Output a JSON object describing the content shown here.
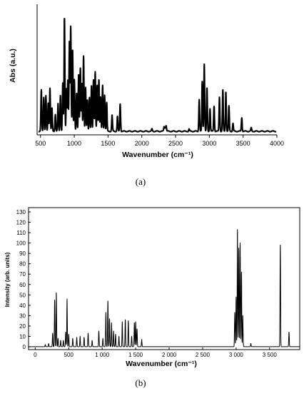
{
  "chart_data": [
    {
      "type": "line",
      "panel_label": "(a)",
      "xlabel": "Wavenumber (cm⁻¹)",
      "ylabel": "Abs (a.u.)",
      "xlim": [
        450,
        4000
      ],
      "x_ticks": [
        "500",
        "1000",
        "1500",
        "2000",
        "2500",
        "3000",
        "3500",
        "4000"
      ],
      "y_ticks": [],
      "grid": false,
      "series": [
        {
          "color": "#000000",
          "peaks": [
            [
              512,
              0.36
            ],
            [
              548,
              0.3
            ],
            [
              580,
              0.31
            ],
            [
              615,
              0.25
            ],
            [
              640,
              0.38
            ],
            [
              670,
              0.2
            ],
            [
              720,
              0.15
            ],
            [
              760,
              0.24
            ],
            [
              795,
              0.32
            ],
            [
              830,
              0.42
            ],
            [
              855,
              1.0
            ],
            [
              885,
              0.38
            ],
            [
              905,
              0.45
            ],
            [
              928,
              0.78
            ],
            [
              948,
              0.92
            ],
            [
              975,
              0.72
            ],
            [
              1002,
              0.45
            ],
            [
              1035,
              0.34
            ],
            [
              1065,
              0.5
            ],
            [
              1090,
              0.55
            ],
            [
              1112,
              0.42
            ],
            [
              1138,
              0.66
            ],
            [
              1168,
              0.38
            ],
            [
              1195,
              0.28
            ],
            [
              1225,
              0.3
            ],
            [
              1255,
              0.4
            ],
            [
              1285,
              0.46
            ],
            [
              1310,
              0.52
            ],
            [
              1340,
              0.4
            ],
            [
              1365,
              0.46
            ],
            [
              1390,
              0.3
            ],
            [
              1420,
              0.4
            ],
            [
              1450,
              0.32
            ],
            [
              1480,
              0.25
            ],
            [
              1560,
              0.14
            ],
            [
              1640,
              0.13
            ],
            [
              1680,
              0.24
            ],
            [
              2150,
              0.02
            ],
            [
              2330,
              0.04
            ],
            [
              2345,
              0.03
            ],
            [
              2360,
              0.05
            ],
            [
              2700,
              0.02
            ],
            [
              2850,
              0.28
            ],
            [
              2895,
              0.44
            ],
            [
              2925,
              0.6
            ],
            [
              2965,
              0.38
            ],
            [
              3010,
              0.2
            ],
            [
              3070,
              0.22
            ],
            [
              3150,
              0.3
            ],
            [
              3200,
              0.36
            ],
            [
              3245,
              0.35
            ],
            [
              3290,
              0.22
            ],
            [
              3350,
              0.07
            ],
            [
              3480,
              0.12
            ],
            [
              3620,
              0.03
            ]
          ]
        }
      ]
    },
    {
      "type": "line",
      "panel_label": "(b)",
      "xlabel": "Wavenumber (cm⁻¹)",
      "ylabel": "Intensity (arb. units)",
      "xlim": [
        -100,
        3950
      ],
      "ylim": [
        0,
        135
      ],
      "x_ticks": [
        "0",
        "500",
        "1 000",
        "1 500",
        "2 000",
        "2 500",
        "3 000",
        "3 500"
      ],
      "y_ticks": [
        "0",
        "10",
        "20",
        "30",
        "40",
        "50",
        "60",
        "70",
        "80",
        "90",
        "100",
        "110",
        "120",
        "130"
      ],
      "grid": false,
      "series": [
        {
          "color": "#000000",
          "peaks": [
            [
              150,
              2
            ],
            [
              200,
              3
            ],
            [
              260,
              13
            ],
            [
              290,
              45
            ],
            [
              315,
              52
            ],
            [
              340,
              8
            ],
            [
              380,
              6
            ],
            [
              420,
              6
            ],
            [
              455,
              14
            ],
            [
              475,
              46
            ],
            [
              500,
              12
            ],
            [
              560,
              8
            ],
            [
              620,
              9
            ],
            [
              670,
              10
            ],
            [
              730,
              9
            ],
            [
              790,
              13
            ],
            [
              850,
              6
            ],
            [
              950,
              15
            ],
            [
              1010,
              8
            ],
            [
              1055,
              33
            ],
            [
              1085,
              44
            ],
            [
              1110,
              27
            ],
            [
              1140,
              23
            ],
            [
              1170,
              15
            ],
            [
              1200,
              12
            ],
            [
              1250,
              10
            ],
            [
              1300,
              24
            ],
            [
              1345,
              26
            ],
            [
              1390,
              25
            ],
            [
              1440,
              10
            ],
            [
              1480,
              23
            ],
            [
              1500,
              24
            ],
            [
              1520,
              17
            ],
            [
              1590,
              7
            ],
            [
              2980,
              33
            ],
            [
              3000,
              48
            ],
            [
              3020,
              113
            ],
            [
              3040,
              95
            ],
            [
              3060,
              100
            ],
            [
              3080,
              72
            ],
            [
              3100,
              30
            ],
            [
              3220,
              3
            ],
            [
              3660,
              98
            ],
            [
              3790,
              14
            ]
          ]
        }
      ]
    }
  ]
}
